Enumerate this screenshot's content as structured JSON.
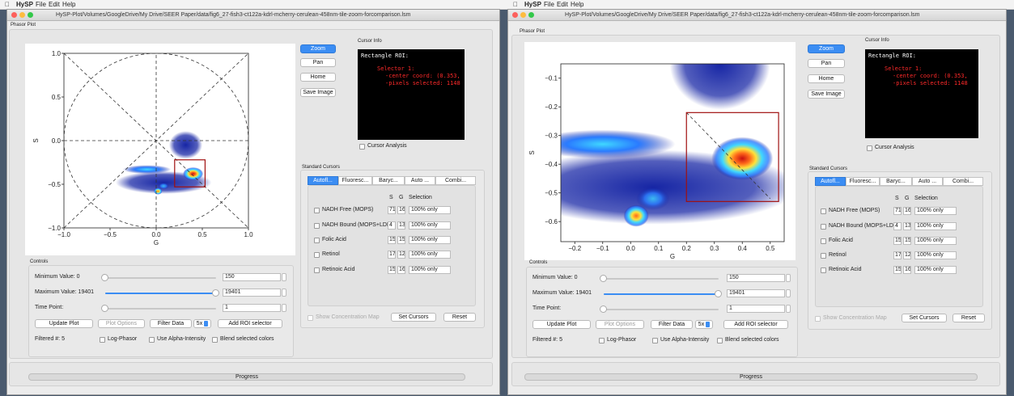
{
  "menubar": {
    "app": "HySP",
    "items": [
      "File",
      "Edit",
      "Help"
    ]
  },
  "window_title": "HySP-Plot/Volumes/GoogleDrive/My Drive/SEER Paper/data/fig6_27-fish3-ct122a-kdrl-mcherry-cerulean-458nm-tile-zoom-forcomparison.lsm",
  "panels": {
    "phasor_plot": "Phasor Plot",
    "cursor_info": "Cursor Info",
    "standard_cursors": "Standard Cursors",
    "controls": "Controls"
  },
  "toolbar": {
    "zoom": "Zoom",
    "pan": "Pan",
    "home": "Home",
    "save_image": "Save Image"
  },
  "cursor_info": {
    "line1": "Rectangle ROI:",
    "line2": "Selector 1:",
    "line3": "-center coord: (0.353,",
    "line4": "-pixels selected: 1148"
  },
  "cursor_analysis": "Cursor Analysis",
  "tabs": [
    "Autofl...",
    "Fluoresc...",
    "Baryc...",
    "Auto ...",
    "Combi..."
  ],
  "cursor_table": {
    "headers": {
      "s": "S",
      "g": "G",
      "selection": "Selection"
    },
    "rows": [
      {
        "name": "NADH Free (MOPS)",
        "s": "71",
        "g": "16",
        "selection": "100% only"
      },
      {
        "name": "NADH Bound (MOPS+LDH)",
        "s": "4",
        "g": "13",
        "selection": "100% only"
      },
      {
        "name": "Folic Acid",
        "s": "15",
        "g": "15",
        "selection": "100% only"
      },
      {
        "name": "Retinol",
        "s": "17",
        "g": "12",
        "selection": "100% only"
      },
      {
        "name": "Retinoic Acid",
        "s": "15",
        "g": "16",
        "selection": "100% only"
      }
    ]
  },
  "show_concentration_map": "Show Concentration Map",
  "set_cursors": "Set Cursors",
  "reset": "Reset",
  "controls": {
    "min_label": "Minimum Value: 0",
    "min_value": "150",
    "max_label": "Maximum Value: 19401",
    "max_value": "19401",
    "time_label": "Time Point:",
    "time_value": "1",
    "update_plot": "Update Plot",
    "plot_options": "Plot Options",
    "filter_data": "Filter Data",
    "filter_factor": "5x",
    "add_roi": "Add ROI selector",
    "filtered": "Filtered #: 5",
    "log_phasor": "Log-Phasor",
    "alpha": "Use Alpha-Intensity",
    "blend": "Blend selected colors"
  },
  "progress": "Progress",
  "chart_data": [
    {
      "type": "scatter",
      "title": "",
      "xlabel": "G",
      "ylabel": "S",
      "xlim": [
        -1.0,
        1.0
      ],
      "ylim": [
        -1.0,
        1.0
      ],
      "xticks": [
        "−1.0",
        "−0.5",
        "0.0",
        "0.5",
        "1.0"
      ],
      "yticks": [
        "1.0",
        "0.5",
        "0.0",
        "−0.5",
        "−1.0"
      ],
      "grid": "dashed unit circle and diagonals",
      "roi_rectangle": {
        "x": [
          0.2,
          0.53
        ],
        "y": [
          -0.53,
          -0.22
        ]
      },
      "clusters": [
        {
          "g": 0.4,
          "s": -0.38,
          "intensity": "high"
        },
        {
          "g": 0.02,
          "s": -0.58,
          "intensity": "medium"
        },
        {
          "g": -0.15,
          "s": -0.33,
          "intensity": "medium"
        }
      ],
      "colormap": [
        "#0a1aa0",
        "#2a7bff",
        "#3fd8ff",
        "#ffe23a",
        "#ff6a1a",
        "#c81010"
      ]
    },
    {
      "type": "scatter",
      "title": "",
      "xlabel": "G",
      "ylabel": "S",
      "xlim": [
        -0.25,
        0.55
      ],
      "ylim": [
        -0.67,
        -0.05
      ],
      "xticks": [
        "−0.2",
        "−0.1",
        "0.0",
        "0.1",
        "0.2",
        "0.3",
        "0.4",
        "0.5"
      ],
      "yticks": [
        "−0.1",
        "−0.2",
        "−0.3",
        "−0.4",
        "−0.5",
        "−0.6"
      ],
      "roi_rectangle": {
        "x": [
          0.2,
          0.53
        ],
        "y": [
          -0.53,
          -0.22
        ]
      },
      "clusters": [
        {
          "g": 0.4,
          "s": -0.38,
          "intensity": "high"
        },
        {
          "g": 0.02,
          "s": -0.58,
          "intensity": "medium"
        },
        {
          "g": -0.15,
          "s": -0.33,
          "intensity": "medium"
        }
      ],
      "colormap": [
        "#0a1aa0",
        "#2a7bff",
        "#3fd8ff",
        "#ffe23a",
        "#ff6a1a",
        "#c81010"
      ]
    }
  ]
}
